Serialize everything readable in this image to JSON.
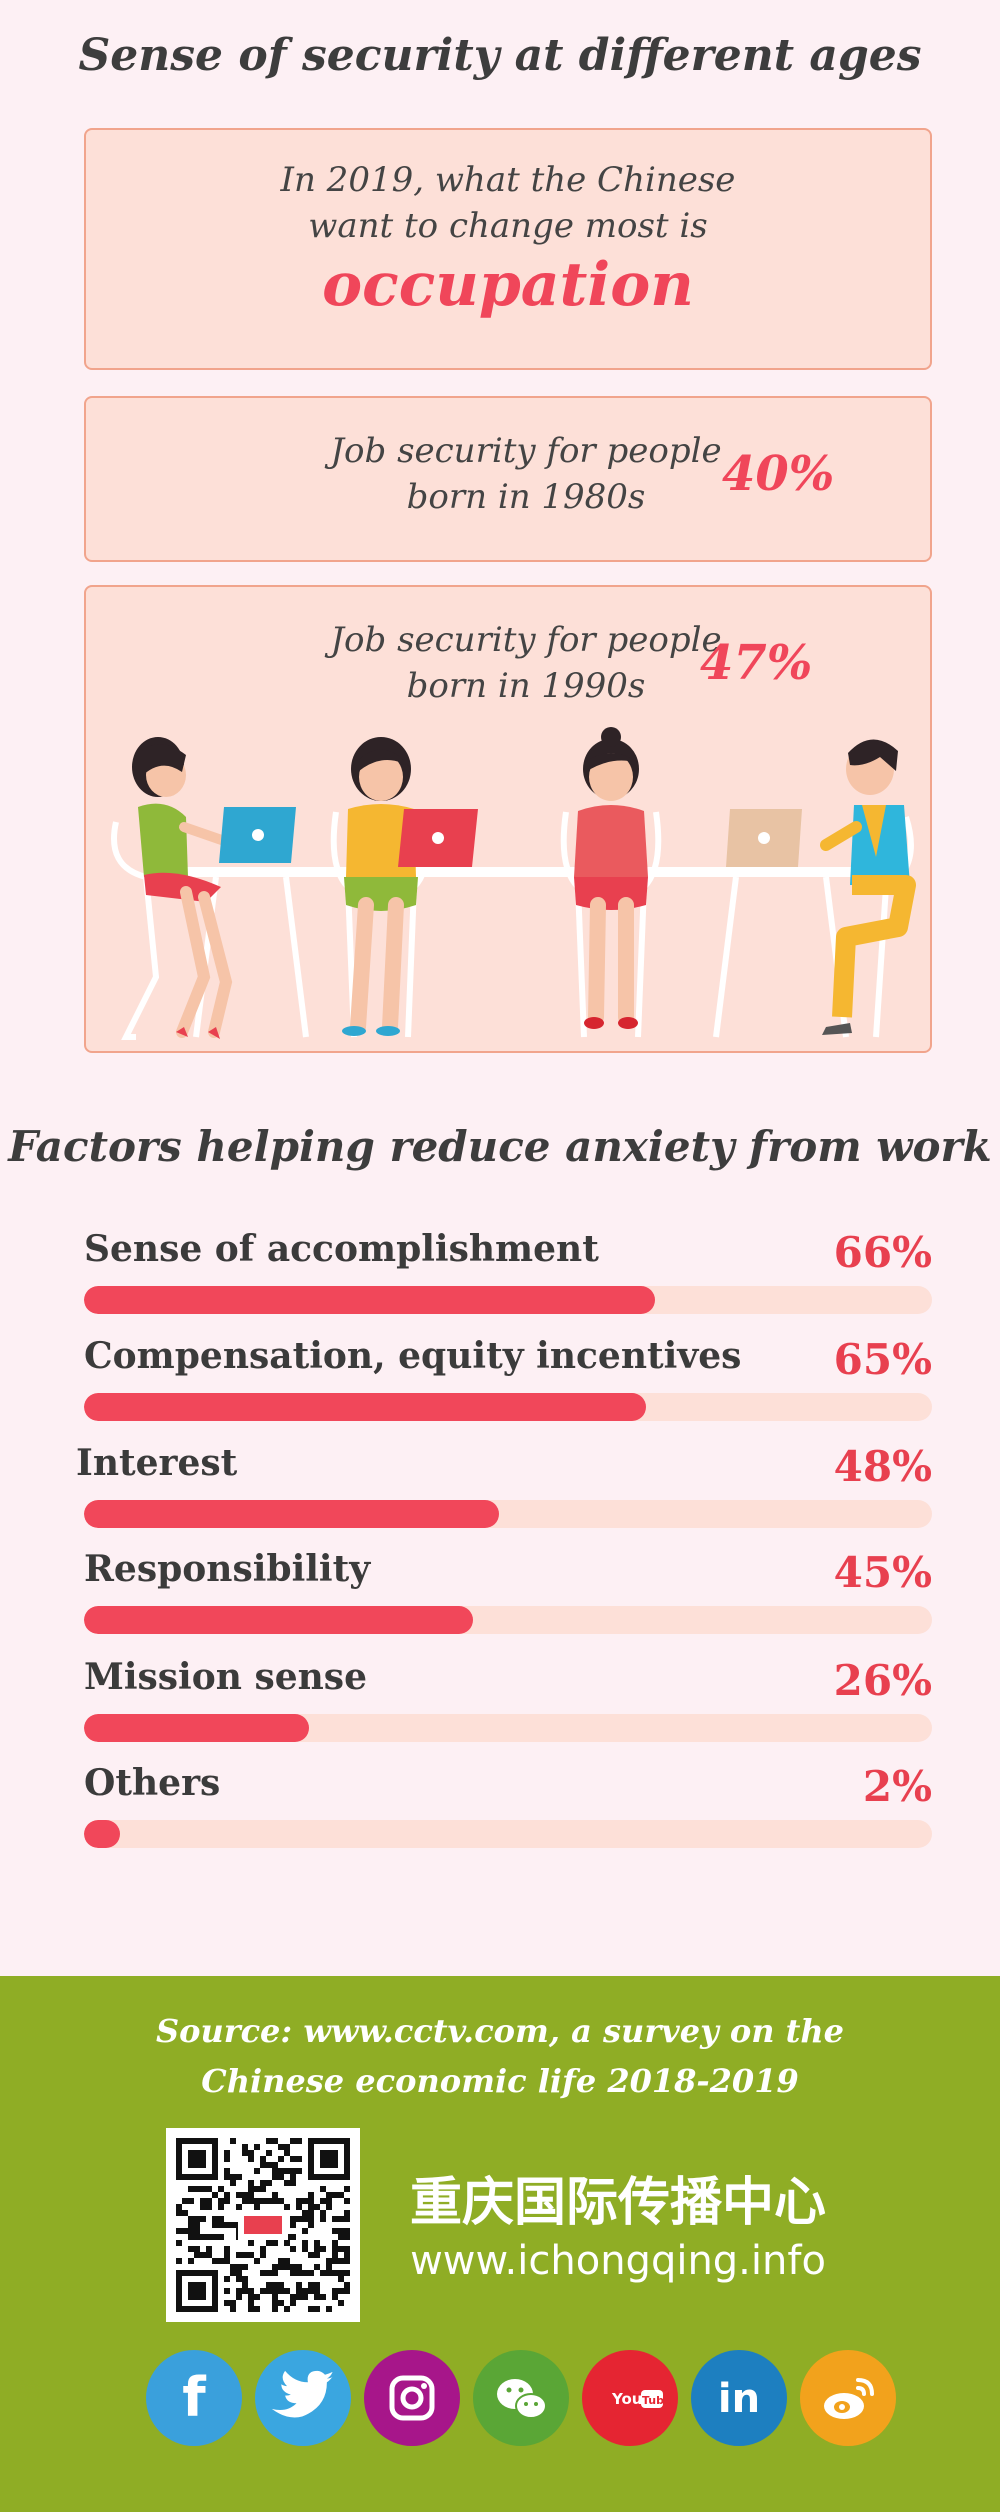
{
  "title": "Sense of security at different ages",
  "intro": {
    "line1": "In 2019, what the Chinese",
    "line2": "want to change most is",
    "highlight": "occupation"
  },
  "job_security": [
    {
      "line1": "Job security for people",
      "line2": "born in 1980s",
      "percent": "40%"
    },
    {
      "line1": "Job security for people",
      "line2": "born in 1990s",
      "percent": "47%"
    }
  ],
  "factors_title": "Factors helping reduce anxiety from work",
  "chart_data": {
    "type": "bar",
    "categories": [
      "Sense of accomplishment",
      "Compensation, equity incentives",
      "Interest",
      "Responsibility",
      "Mission sense",
      "Others"
    ],
    "values": [
      66,
      65,
      48,
      45,
      26,
      2
    ],
    "value_labels": [
      "66%",
      "65%",
      "48%",
      "45%",
      "26%",
      "2%"
    ],
    "ylim": [
      0,
      100
    ]
  },
  "footer": {
    "source": "Source: www.cctv.com, a survey on the Chinese economic life 2018-2019",
    "org_name": "重庆国际传播中心",
    "org_url": "www.ichongqing.info",
    "social": [
      {
        "icon": "facebook-icon",
        "color": "#3aa0dc",
        "glyph": "f"
      },
      {
        "icon": "twitter-icon",
        "color": "#3aa6e0",
        "glyph": ""
      },
      {
        "icon": "instagram-icon",
        "color": "#a7168a",
        "glyph": ""
      },
      {
        "icon": "wechat-icon",
        "color": "#5aa636",
        "glyph": ""
      },
      {
        "icon": "youtube-icon",
        "color": "#e52532",
        "glyph": "YouTube"
      },
      {
        "icon": "linkedin-icon",
        "color": "#1d7fc0",
        "glyph": "in"
      },
      {
        "icon": "weibo-icon",
        "color": "#f2a21c",
        "glyph": ""
      }
    ]
  }
}
